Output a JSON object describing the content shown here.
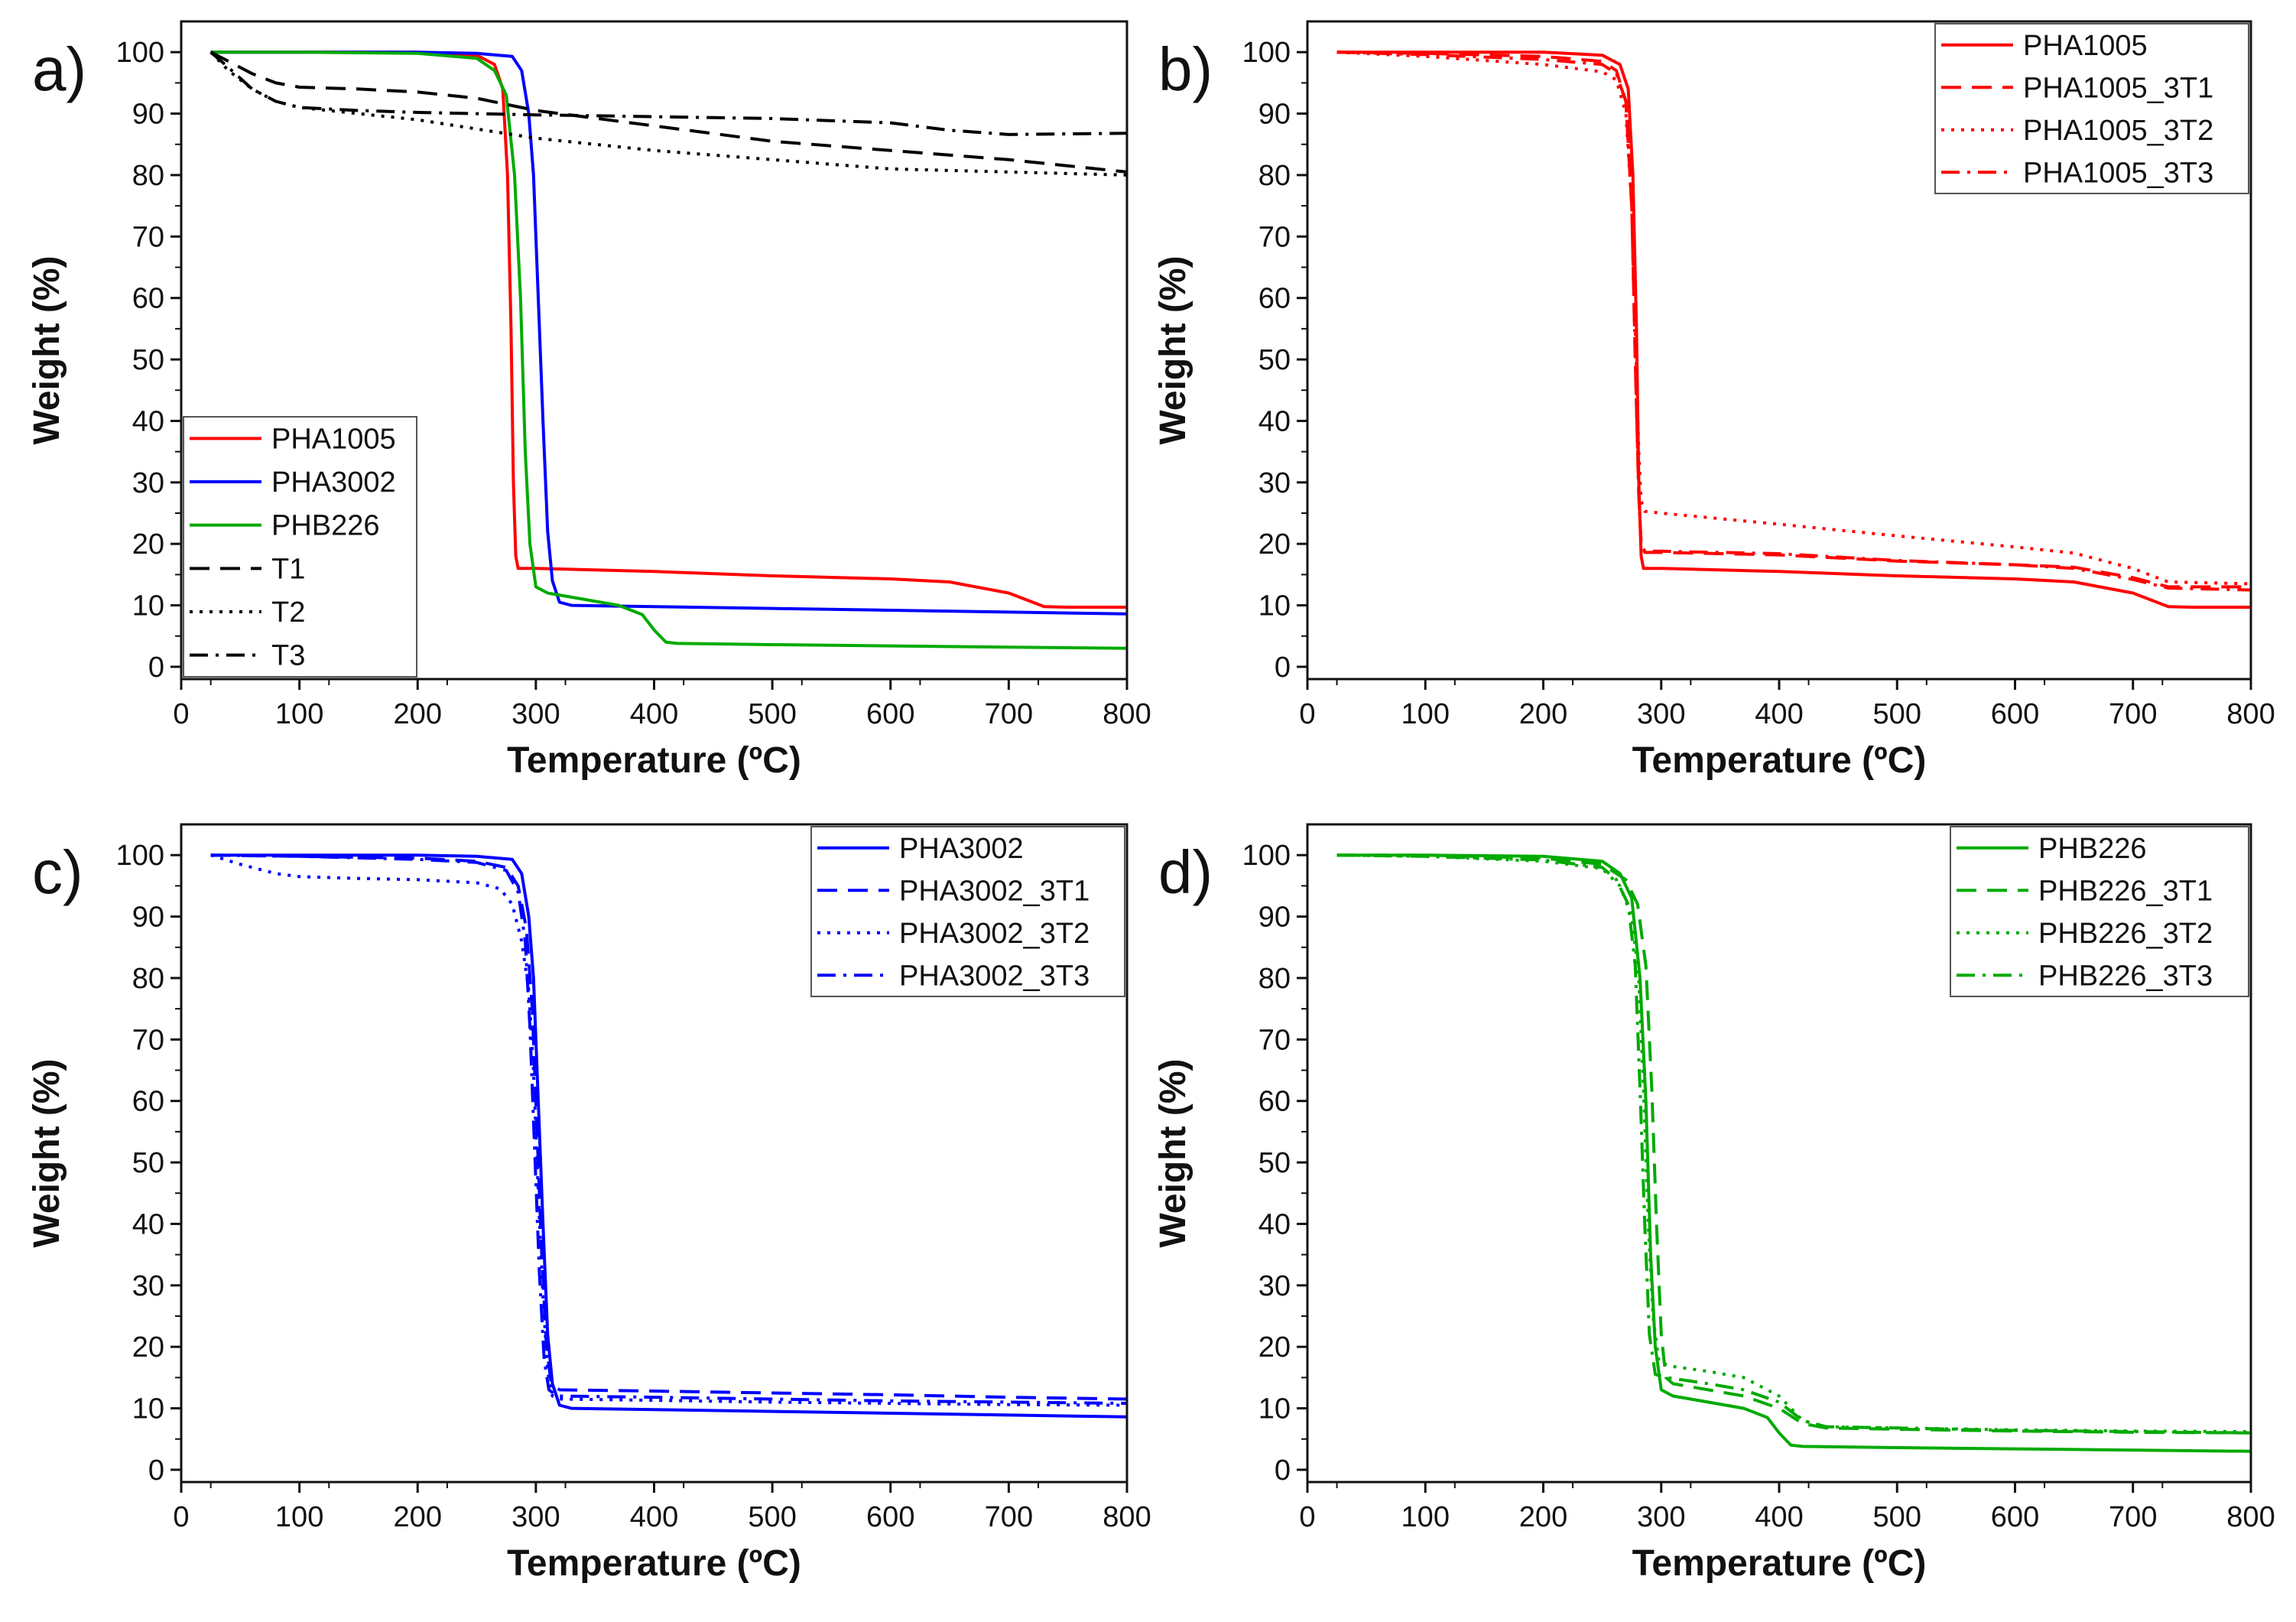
{
  "chart_data": [
    {
      "type": "line",
      "panel_label": "a)",
      "xlabel": "Temperature (ºC)",
      "ylabel": "Weight (%)",
      "xlim": [
        0,
        800
      ],
      "ylim": [
        -2,
        105
      ],
      "xticks": [
        0,
        100,
        200,
        300,
        400,
        500,
        600,
        700,
        800
      ],
      "yticks": [
        0,
        10,
        20,
        30,
        40,
        50,
        60,
        70,
        80,
        90,
        100
      ],
      "grid": false,
      "legend_position": "bottom-left",
      "series": [
        {
          "name": "PHA1005",
          "color": "#ff0000",
          "dash": "solid",
          "x": [
            25,
            100,
            200,
            250,
            265,
            272,
            276,
            279,
            281,
            283,
            285,
            300,
            400,
            500,
            600,
            650,
            700,
            730,
            750,
            800
          ],
          "y": [
            100,
            100,
            100,
            99.5,
            98,
            94,
            80,
            55,
            30,
            18,
            16,
            16,
            15.5,
            14.8,
            14.3,
            13.8,
            12,
            9.8,
            9.7,
            9.7
          ]
        },
        {
          "name": "PHA3002",
          "color": "#0000ff",
          "dash": "solid",
          "x": [
            25,
            100,
            200,
            250,
            280,
            288,
            294,
            298,
            302,
            306,
            310,
            314,
            320,
            330,
            400,
            500,
            600,
            700,
            800
          ],
          "y": [
            100,
            100,
            100,
            99.8,
            99.3,
            97,
            90,
            80,
            60,
            40,
            22,
            14,
            10.5,
            10,
            9.8,
            9.5,
            9.2,
            8.9,
            8.6
          ]
        },
        {
          "name": "PHB226",
          "color": "#00aa00",
          "dash": "solid",
          "x": [
            25,
            100,
            200,
            250,
            265,
            275,
            282,
            287,
            291,
            295,
            300,
            310,
            340,
            370,
            390,
            400,
            410,
            420,
            500,
            600,
            700,
            800
          ],
          "y": [
            100,
            100,
            99.8,
            99,
            97,
            93,
            80,
            60,
            35,
            20,
            13,
            12,
            11,
            10,
            8.5,
            6,
            4,
            3.8,
            3.6,
            3.4,
            3.2,
            3
          ]
        },
        {
          "name": "T1",
          "color": "#000000",
          "dash": "dashed",
          "x": [
            25,
            40,
            60,
            80,
            100,
            150,
            200,
            250,
            300,
            400,
            500,
            600,
            700,
            800
          ],
          "y": [
            100,
            98.5,
            96.5,
            95,
            94.3,
            94,
            93.5,
            92.5,
            90.5,
            88,
            85.5,
            84,
            82.5,
            80.5
          ]
        },
        {
          "name": "T2",
          "color": "#000000",
          "dash": "dotted",
          "x": [
            25,
            40,
            60,
            80,
            100,
            150,
            200,
            250,
            300,
            400,
            500,
            600,
            700,
            800
          ],
          "y": [
            100,
            97,
            94,
            92,
            91,
            90,
            89,
            87.5,
            86,
            84,
            82.5,
            81,
            80.5,
            80
          ]
        },
        {
          "name": "T3",
          "color": "#000000",
          "dash": "dashdot",
          "x": [
            25,
            40,
            60,
            80,
            100,
            150,
            200,
            250,
            300,
            400,
            500,
            600,
            650,
            700,
            800
          ],
          "y": [
            100,
            97.5,
            94,
            92,
            91,
            90.5,
            90.2,
            90,
            89.8,
            89.5,
            89.2,
            88.5,
            87.3,
            86.6,
            86.8
          ]
        }
      ]
    },
    {
      "type": "line",
      "panel_label": "b)",
      "xlabel": "Temperature (ºC)",
      "ylabel": "Weight (%)",
      "xlim": [
        0,
        800
      ],
      "ylim": [
        -2,
        105
      ],
      "xticks": [
        0,
        100,
        200,
        300,
        400,
        500,
        600,
        700,
        800
      ],
      "yticks": [
        0,
        10,
        20,
        30,
        40,
        50,
        60,
        70,
        80,
        90,
        100
      ],
      "grid": false,
      "legend_position": "top-right",
      "series": [
        {
          "name": "PHA1005",
          "color": "#ff0000",
          "dash": "solid",
          "x": [
            25,
            100,
            200,
            250,
            265,
            272,
            276,
            279,
            281,
            283,
            285,
            300,
            400,
            500,
            600,
            650,
            700,
            730,
            750,
            800
          ],
          "y": [
            100,
            100,
            100,
            99.5,
            98,
            94,
            80,
            55,
            30,
            18,
            16,
            16,
            15.5,
            14.8,
            14.3,
            13.8,
            12,
            9.8,
            9.7,
            9.7
          ]
        },
        {
          "name": "PHA1005_3T1",
          "color": "#ff0000",
          "dash": "dashed",
          "x": [
            25,
            100,
            200,
            250,
            262,
            270,
            275,
            278,
            281,
            283,
            286,
            300,
            400,
            500,
            600,
            650,
            700,
            730,
            800
          ],
          "y": [
            100,
            99.8,
            99.3,
            98.5,
            97,
            92,
            75,
            50,
            28,
            20,
            18.6,
            18.6,
            18.2,
            17.2,
            16.6,
            16.2,
            14.5,
            13,
            13
          ]
        },
        {
          "name": "PHA1005_3T2",
          "color": "#ff0000",
          "dash": "dotted",
          "x": [
            25,
            100,
            200,
            250,
            262,
            270,
            275,
            278,
            281,
            283,
            286,
            300,
            400,
            500,
            600,
            650,
            700,
            730,
            800
          ],
          "y": [
            100,
            99.3,
            98,
            96.8,
            95.5,
            90,
            75,
            55,
            35,
            27,
            25.3,
            25,
            23.2,
            21.3,
            19.5,
            18.5,
            16,
            13.8,
            13.5
          ]
        },
        {
          "name": "PHA1005_3T3",
          "color": "#ff0000",
          "dash": "dashdot",
          "x": [
            25,
            100,
            200,
            250,
            262,
            270,
            275,
            278,
            281,
            283,
            286,
            300,
            400,
            500,
            600,
            650,
            700,
            730,
            800
          ],
          "y": [
            100,
            99.6,
            98.8,
            98,
            96.5,
            92,
            75,
            50,
            28,
            20,
            18.8,
            18.8,
            18.4,
            17.3,
            16.6,
            16,
            14.2,
            12.8,
            12.5
          ]
        }
      ]
    },
    {
      "type": "line",
      "panel_label": "c)",
      "xlabel": "Temperature (ºC)",
      "ylabel": "Weight (%)",
      "xlim": [
        0,
        800
      ],
      "ylim": [
        -2,
        105
      ],
      "xticks": [
        0,
        100,
        200,
        300,
        400,
        500,
        600,
        700,
        800
      ],
      "yticks": [
        0,
        10,
        20,
        30,
        40,
        50,
        60,
        70,
        80,
        90,
        100
      ],
      "grid": false,
      "legend_position": "top-right",
      "series": [
        {
          "name": "PHA3002",
          "color": "#0000ff",
          "dash": "solid",
          "x": [
            25,
            100,
            200,
            250,
            280,
            288,
            294,
            298,
            302,
            306,
            310,
            314,
            320,
            330,
            400,
            500,
            600,
            700,
            800
          ],
          "y": [
            100,
            100,
            100,
            99.8,
            99.3,
            97,
            90,
            80,
            60,
            40,
            22,
            14,
            10.5,
            10,
            9.8,
            9.5,
            9.2,
            8.9,
            8.6
          ]
        },
        {
          "name": "PHA3002_3T1",
          "color": "#0000ff",
          "dash": "dashed",
          "x": [
            25,
            100,
            200,
            250,
            275,
            285,
            292,
            297,
            301,
            305,
            309,
            313,
            320,
            400,
            500,
            600,
            700,
            800
          ],
          "y": [
            100,
            99.8,
            99.5,
            99,
            98,
            95,
            88,
            75,
            55,
            35,
            20,
            14,
            13,
            12.8,
            12.5,
            12.2,
            11.8,
            11.5
          ]
        },
        {
          "name": "PHA3002_3T2",
          "color": "#0000ff",
          "dash": "dotted",
          "x": [
            25,
            50,
            80,
            100,
            150,
            200,
            250,
            270,
            280,
            288,
            294,
            298,
            302,
            306,
            310,
            314,
            320,
            400,
            500,
            600,
            700,
            800
          ],
          "y": [
            100,
            98.5,
            97,
            96.5,
            96.2,
            96,
            95.5,
            94.5,
            92,
            86,
            78,
            65,
            45,
            28,
            16,
            12,
            11.5,
            11.3,
            11,
            10.8,
            10.6,
            10.5
          ]
        },
        {
          "name": "PHA3002_3T3",
          "color": "#0000ff",
          "dash": "dashdot",
          "x": [
            25,
            100,
            200,
            250,
            275,
            285,
            291,
            295,
            299,
            303,
            307,
            311,
            318,
            400,
            500,
            600,
            700,
            800
          ],
          "y": [
            100,
            99.8,
            99.3,
            98.8,
            97.5,
            94,
            86,
            72,
            52,
            32,
            18,
            13,
            12,
            11.8,
            11.5,
            11.2,
            11,
            10.8
          ]
        }
      ]
    },
    {
      "type": "line",
      "panel_label": "d)",
      "xlabel": "Temperature (ºC)",
      "ylabel": "Weight (%)",
      "xlim": [
        0,
        800
      ],
      "ylim": [
        -2,
        105
      ],
      "xticks": [
        0,
        100,
        200,
        300,
        400,
        500,
        600,
        700,
        800
      ],
      "yticks": [
        0,
        10,
        20,
        30,
        40,
        50,
        60,
        70,
        80,
        90,
        100
      ],
      "grid": false,
      "legend_position": "top-right",
      "series": [
        {
          "name": "PHB226",
          "color": "#00aa00",
          "dash": "solid",
          "x": [
            25,
            100,
            200,
            250,
            265,
            275,
            282,
            287,
            291,
            295,
            300,
            310,
            340,
            370,
            390,
            400,
            410,
            420,
            500,
            600,
            700,
            800
          ],
          "y": [
            100,
            100,
            99.8,
            99,
            97,
            93,
            80,
            60,
            35,
            20,
            13,
            12,
            11,
            10,
            8.5,
            6,
            4,
            3.8,
            3.6,
            3.4,
            3.2,
            3
          ]
        },
        {
          "name": "PHB226_3T1",
          "color": "#00aa00",
          "dash": "dashed",
          "x": [
            25,
            100,
            200,
            250,
            270,
            280,
            287,
            292,
            296,
            300,
            304,
            310,
            340,
            370,
            400,
            420,
            440,
            500,
            600,
            700,
            800
          ],
          "y": [
            100,
            100,
            99.5,
            98.5,
            96,
            92,
            82,
            62,
            40,
            22,
            15,
            14,
            13,
            12,
            10,
            7.5,
            6.8,
            6.6,
            6.3,
            6.1,
            6
          ]
        },
        {
          "name": "PHB226_3T2",
          "color": "#00aa00",
          "dash": "dotted",
          "x": [
            25,
            100,
            200,
            250,
            265,
            275,
            281,
            285,
            289,
            293,
            298,
            310,
            340,
            370,
            400,
            420,
            440,
            500,
            600,
            700,
            800
          ],
          "y": [
            100,
            99.8,
            99,
            97.8,
            95,
            90,
            80,
            62,
            40,
            25,
            17.5,
            16.8,
            16,
            15,
            12,
            8,
            7,
            6.8,
            6.5,
            6.3,
            6.2
          ]
        },
        {
          "name": "PHB226_3T3",
          "color": "#00aa00",
          "dash": "dashdot",
          "x": [
            25,
            100,
            200,
            250,
            262,
            272,
            278,
            282,
            286,
            290,
            295,
            305,
            340,
            370,
            400,
            420,
            440,
            500,
            600,
            700,
            800
          ],
          "y": [
            100,
            99.8,
            99.2,
            98,
            96,
            92,
            82,
            62,
            40,
            22,
            15.5,
            15,
            14,
            13,
            11,
            8,
            7,
            6.8,
            6.4,
            6.2,
            6
          ]
        }
      ]
    }
  ]
}
